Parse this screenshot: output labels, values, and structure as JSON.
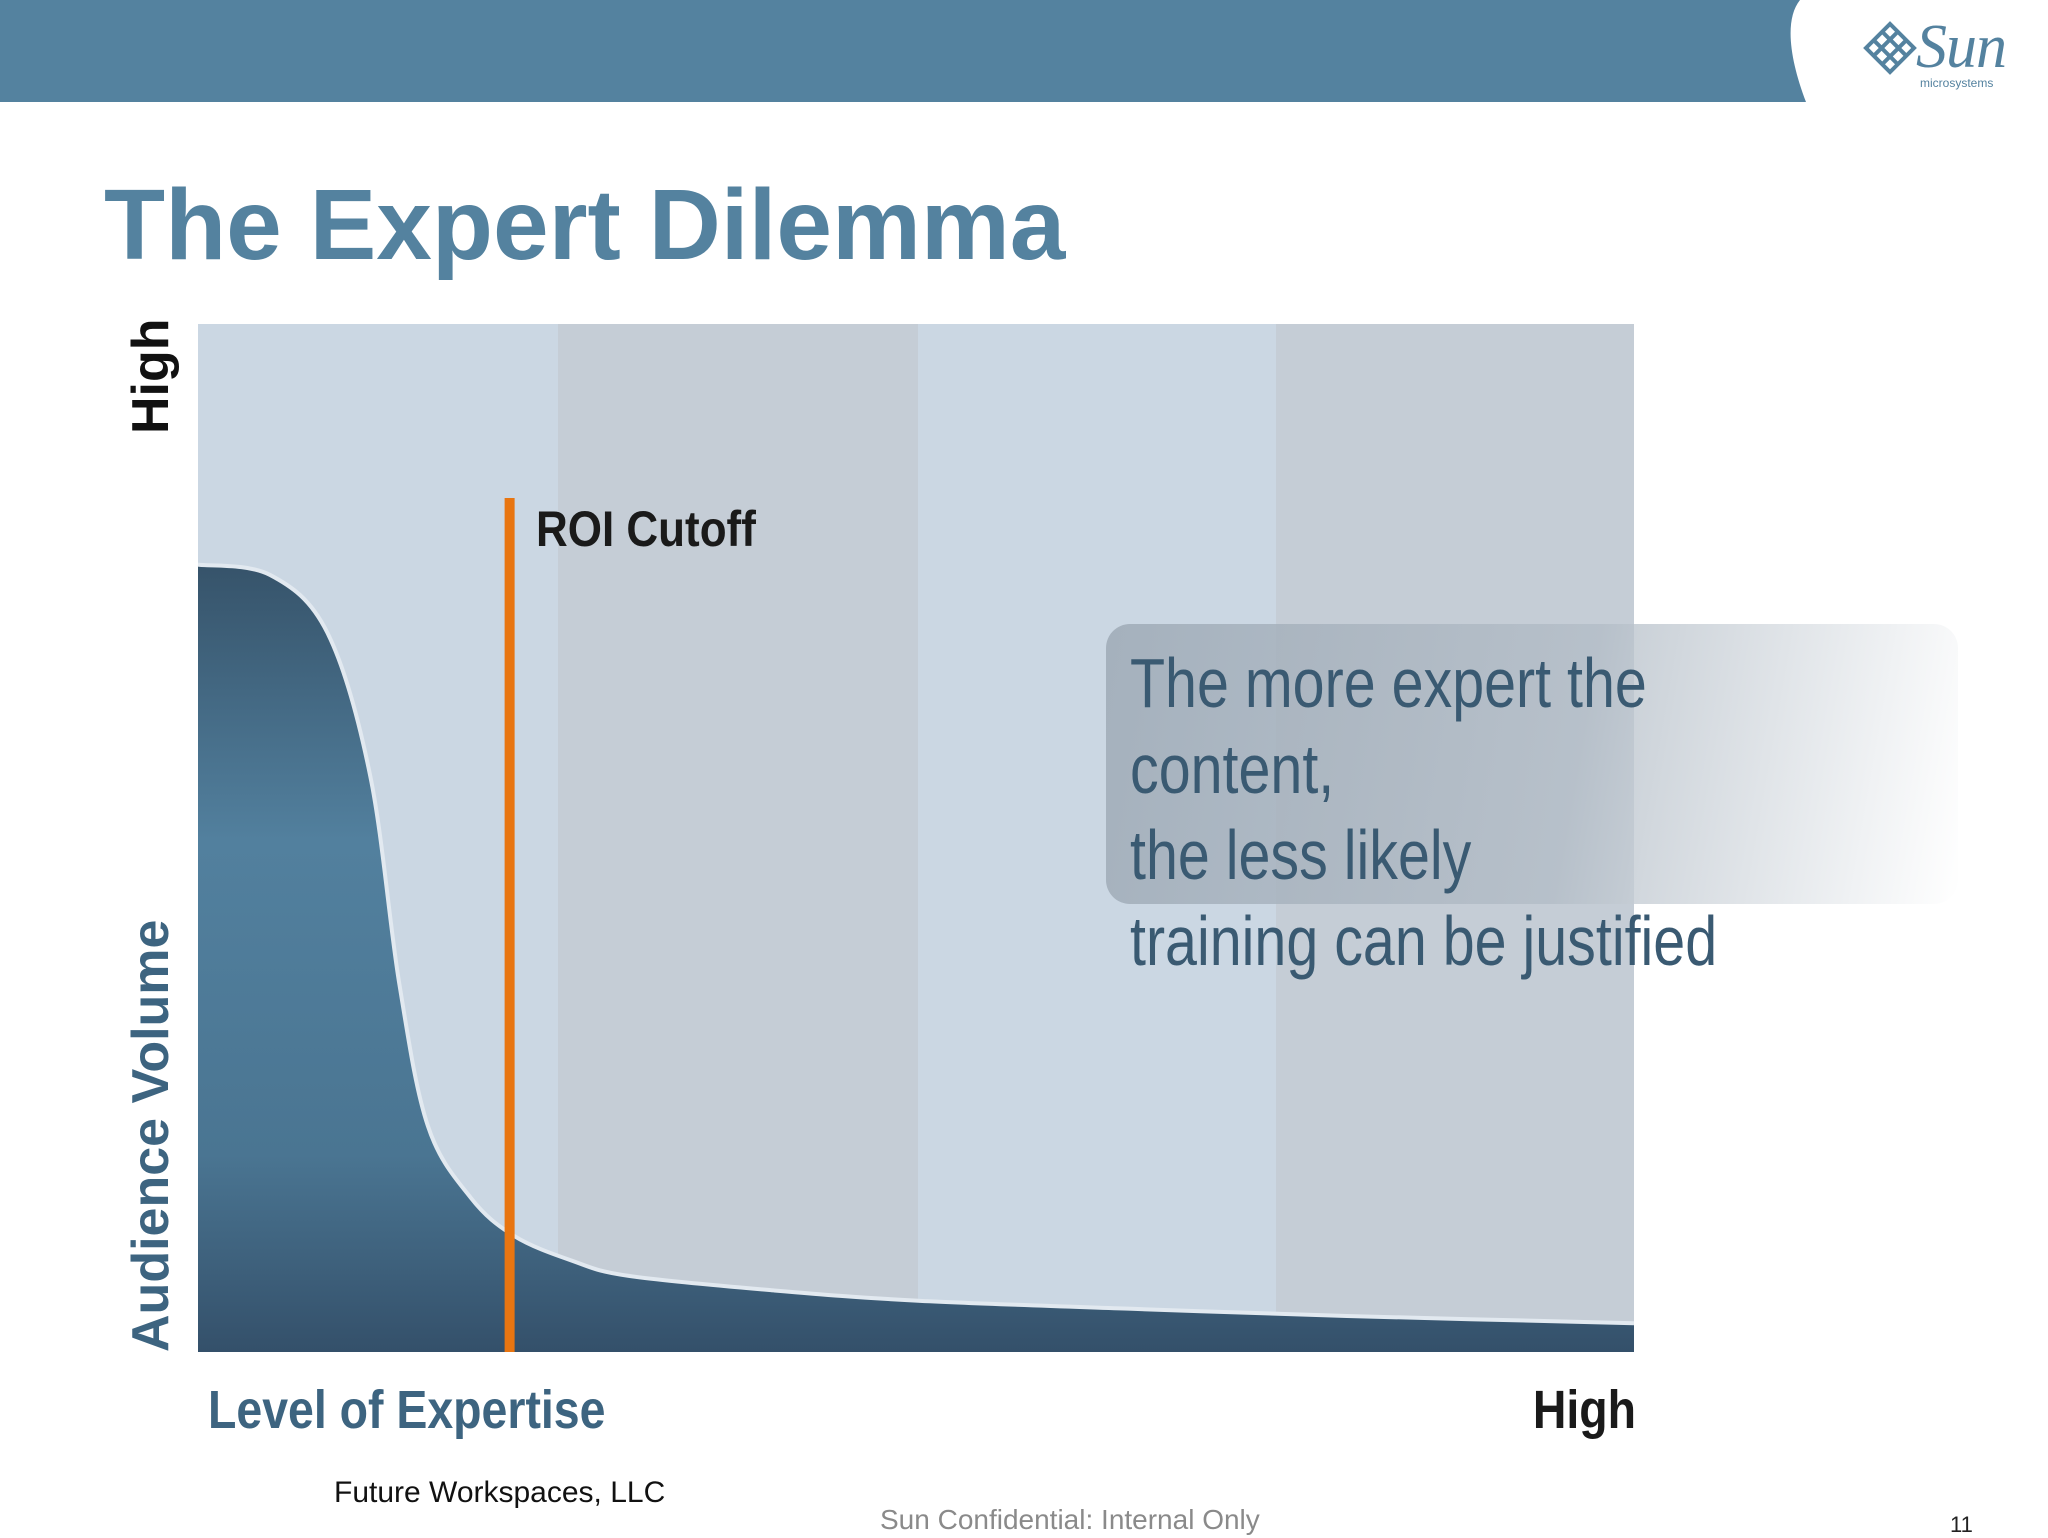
{
  "slide": {
    "title": "The Expert Dilemma",
    "source": "Future Workspaces, LLC",
    "confidential": "Sun Confidential: Internal Only",
    "page_number": "11"
  },
  "logo": {
    "word": "Sun",
    "sub": "microsystems"
  },
  "colors": {
    "header": "#54829f",
    "title": "#54829f",
    "curve": "#4f7a98",
    "roi_line": "#e87511",
    "band_light": "#cbd7e3",
    "band_dark": "#c5cdd6"
  },
  "callout": {
    "text": "The more expert the content,\nthe less likely\ntraining can be justified"
  },
  "chart_data": {
    "type": "area",
    "xlabel": "Level of Expertise",
    "ylabel": "Audience Volume",
    "x_high_label": "High",
    "y_high_label": "High",
    "xlim": [
      0,
      1
    ],
    "ylim": [
      0,
      1
    ],
    "grid": false,
    "x": [
      0,
      0.05,
      0.09,
      0.12,
      0.14,
      0.16,
      0.19,
      0.22,
      0.26,
      0.3,
      0.4,
      0.5,
      0.65,
      0.8,
      1.0
    ],
    "y": [
      0.766,
      0.756,
      0.7,
      0.56,
      0.36,
      0.22,
      0.15,
      0.113,
      0.089,
      0.074,
      0.06,
      0.05,
      0.042,
      0.035,
      0.028
    ],
    "annotations": [
      {
        "label": "ROI Cutoff",
        "x": 0.217
      }
    ]
  }
}
